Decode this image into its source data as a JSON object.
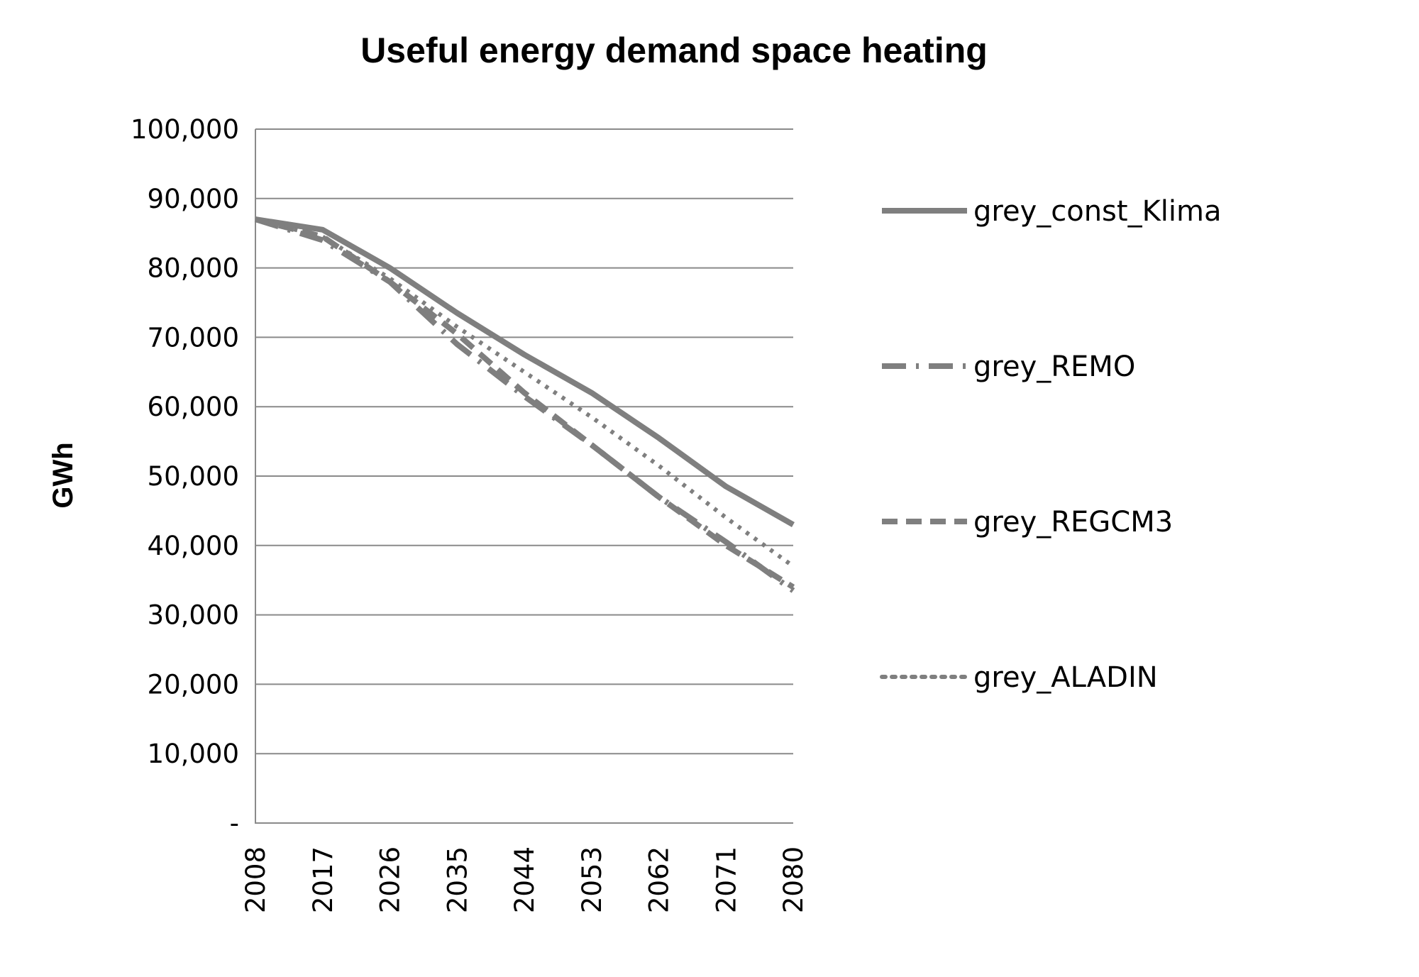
{
  "chart_data": {
    "type": "line",
    "title": "Useful energy demand space heating",
    "xlabel": "",
    "ylabel": "GWh",
    "ylim": [
      0,
      100000
    ],
    "yticks": [
      {
        "value": 0,
        "label": "-"
      },
      {
        "value": 10000,
        "label": "10,000"
      },
      {
        "value": 20000,
        "label": "20,000"
      },
      {
        "value": 30000,
        "label": "30,000"
      },
      {
        "value": 40000,
        "label": "40,000"
      },
      {
        "value": 50000,
        "label": "50,000"
      },
      {
        "value": 60000,
        "label": "60,000"
      },
      {
        "value": 70000,
        "label": "70,000"
      },
      {
        "value": 80000,
        "label": "80,000"
      },
      {
        "value": 90000,
        "label": "90,000"
      },
      {
        "value": 100000,
        "label": "100,000"
      }
    ],
    "xlim": [
      2008,
      2080
    ],
    "xticks": [
      "2008",
      "2017",
      "2026",
      "2035",
      "2044",
      "2053",
      "2062",
      "2071",
      "2080"
    ],
    "grid": "horizontal",
    "legend_position": "right",
    "x": [
      2008,
      2017,
      2026,
      2035,
      2044,
      2053,
      2062,
      2071,
      2080
    ],
    "series": [
      {
        "name": "grey_const_Klima",
        "style": "solid",
        "color": "#7f7f7f",
        "values": [
          87000,
          85500,
          80000,
          73500,
          67500,
          62000,
          55500,
          48500,
          43000
        ]
      },
      {
        "name": "grey_REMO",
        "style": "longdash-dot",
        "color": "#7f7f7f",
        "values": [
          87000,
          84000,
          78000,
          69000,
          61500,
          54500,
          47000,
          40500,
          33500
        ]
      },
      {
        "name": "grey_REGCM3",
        "style": "dash",
        "color": "#7f7f7f",
        "values": [
          87000,
          84500,
          78000,
          70500,
          62000,
          54500,
          47000,
          40000,
          34000
        ]
      },
      {
        "name": "grey_ALADIN",
        "style": "dot",
        "color": "#7f7f7f",
        "values": [
          87000,
          84500,
          78500,
          71500,
          65000,
          58500,
          51500,
          44000,
          37000
        ]
      }
    ]
  }
}
